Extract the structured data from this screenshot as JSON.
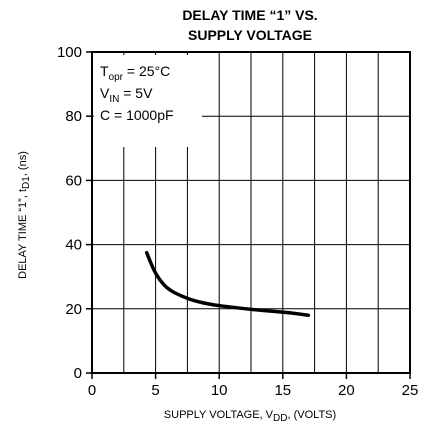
{
  "chart_data": {
    "type": "line",
    "title_lines": [
      "DELAY TIME “1” VS.",
      "SUPPLY VOLTAGE"
    ],
    "xlabel": {
      "main": "SUPPLY VOLTAGE, V",
      "sub": "DD",
      "suffix": ", (VOLTS)"
    },
    "ylabel": {
      "main": "DELAY TIME “1”, t",
      "sub": "D1",
      "suffix": ", (ns)"
    },
    "xlim": [
      0,
      25
    ],
    "ylim": [
      0,
      100
    ],
    "x_ticks": [
      "0",
      "5",
      "10",
      "15",
      "20",
      "25"
    ],
    "y_ticks": [
      "0",
      "20",
      "40",
      "60",
      "80",
      "100"
    ],
    "x_gridlines": [
      2.5,
      5,
      7.5,
      10,
      12.5,
      15,
      17.5,
      20,
      22.5
    ],
    "y_gridlines": [
      20,
      40,
      60,
      80
    ],
    "grid": true,
    "conditions": [
      {
        "main": "T",
        "sub": "opr",
        "suffix": " = 25°C"
      },
      {
        "main": "V",
        "sub": "IN",
        "suffix": " = 5V"
      },
      {
        "main": "C = 1000pF",
        "sub": "",
        "suffix": ""
      }
    ],
    "series": [
      {
        "x": [
          4.3,
          4.8,
          5.3,
          6.0,
          7.0,
          8.0,
          9.5,
          11.0,
          12.5,
          14.0,
          15.5,
          17.0
        ],
        "y": [
          37.5,
          32.5,
          29.0,
          26.0,
          24.0,
          22.5,
          21.2,
          20.5,
          19.8,
          19.3,
          18.8,
          18.0
        ]
      }
    ]
  }
}
